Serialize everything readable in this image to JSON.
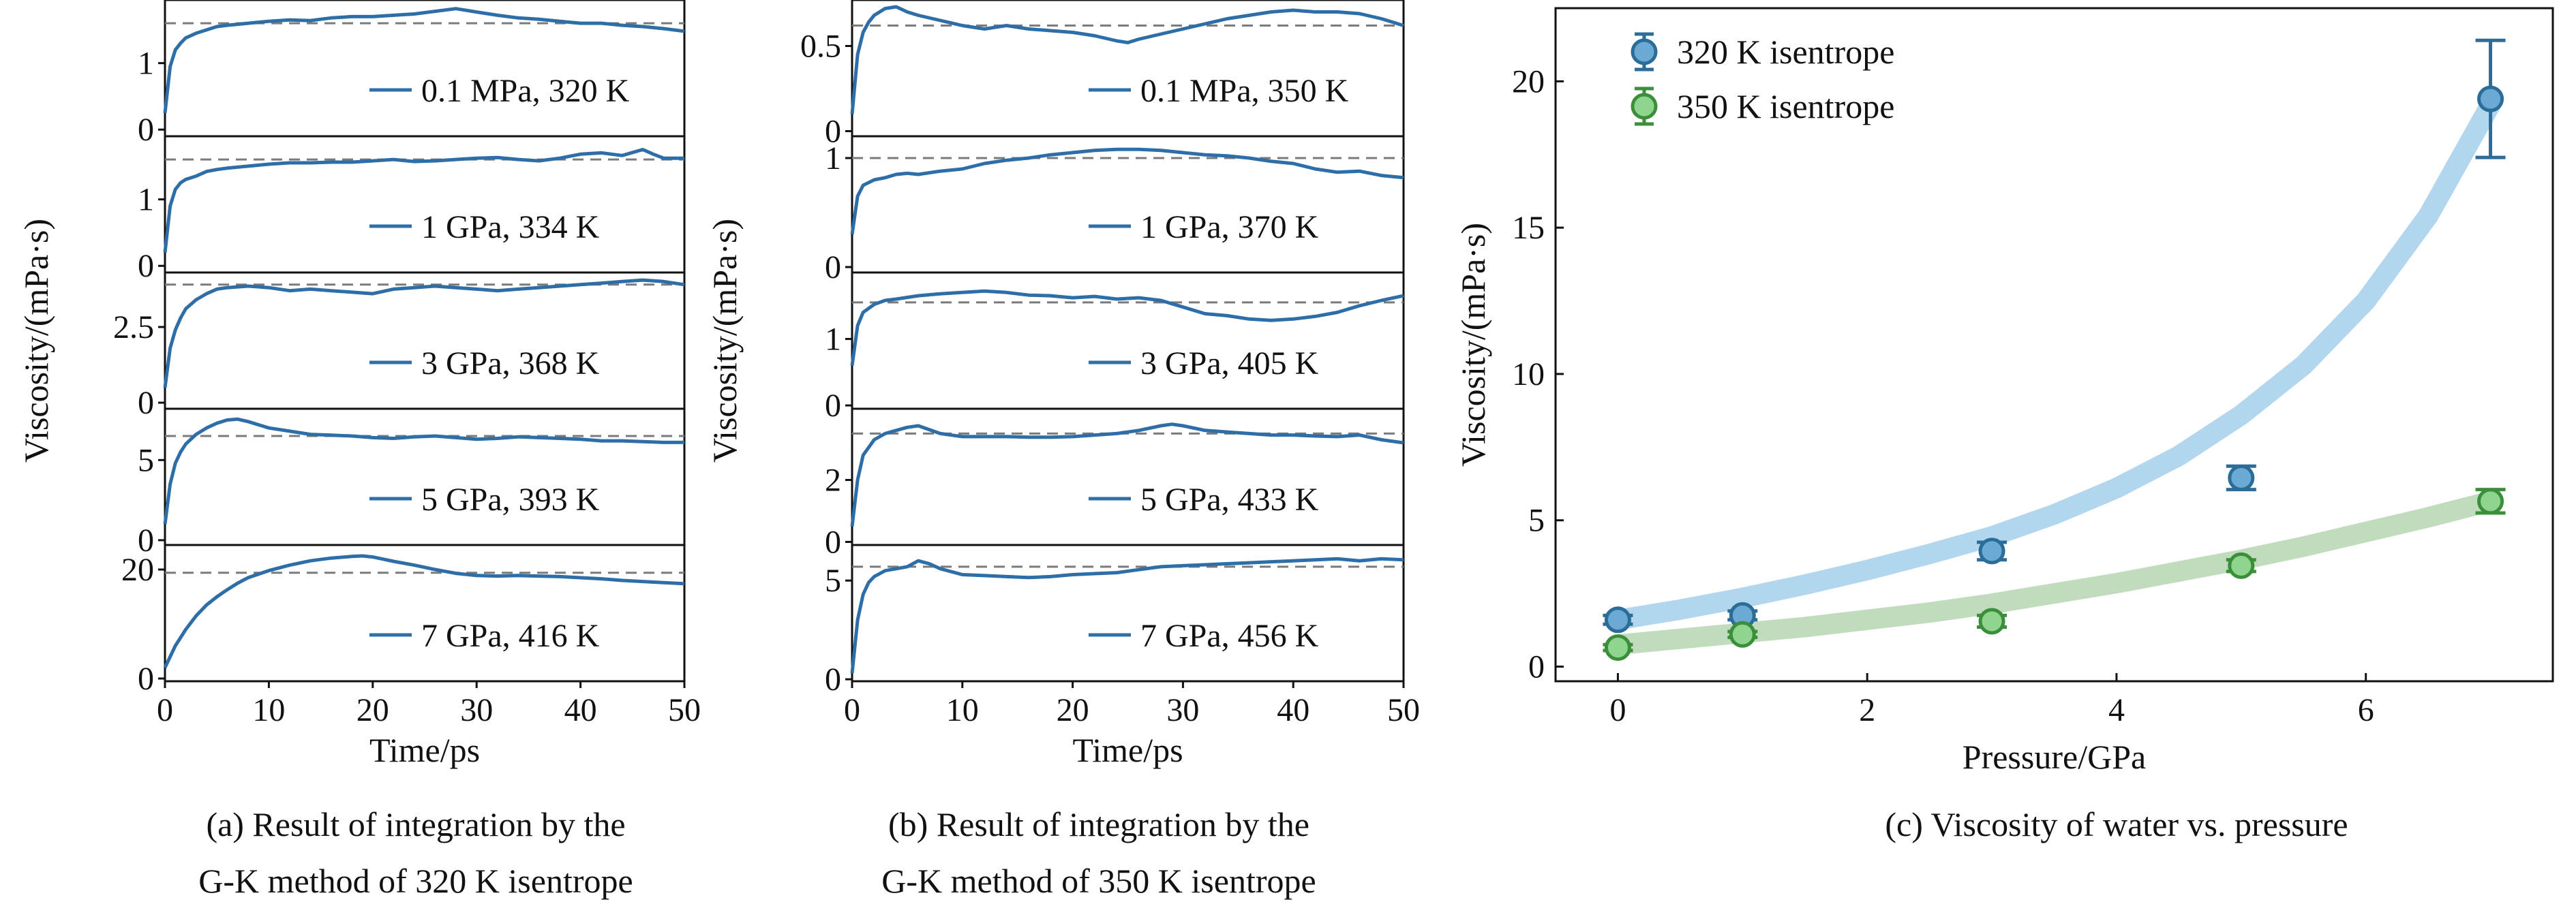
{
  "colors": {
    "series_320": "#6aaad3",
    "series_350": "#8fd48f",
    "fit_320": "#a8d2ec",
    "fit_350": "#b9d8b6",
    "trace": "#2e6ea8",
    "dashed": "#7a7a7a",
    "errorbar_320": "#2b6c98",
    "errorbar_350": "#3b8f3b"
  },
  "captions": {
    "a": [
      "(a) Result of integration by the",
      "G-K method of 320 K isentrope"
    ],
    "b": [
      "(b) Result of integration by the",
      "G-K method of 350 K isentrope"
    ],
    "c": [
      "(c) Viscosity of water vs. pressure"
    ]
  },
  "chart_data": [
    {
      "type": "line",
      "panel": "a",
      "xlabel": "Time/ps",
      "ylabel": "Viscosity/(mPa·s)",
      "x_ticks": [
        "0",
        "10",
        "20",
        "30",
        "40",
        "50"
      ],
      "xlim": [
        0,
        50
      ],
      "subplots": [
        {
          "label": "0.1 MPa, 320 K",
          "mean": 1.6,
          "ylim": [
            -0.1,
            1.95
          ],
          "yticks": [
            0,
            1
          ],
          "ytick_labels": [
            "0",
            "1"
          ],
          "x": [
            0,
            0.5,
            1,
            1.5,
            2,
            3,
            4,
            5,
            6,
            8,
            10,
            12,
            14,
            16,
            18,
            20,
            22,
            24,
            26,
            28,
            30,
            32,
            34,
            36,
            38,
            40,
            42,
            44,
            46,
            48,
            50
          ],
          "y": [
            0.25,
            0.95,
            1.2,
            1.3,
            1.38,
            1.45,
            1.5,
            1.55,
            1.57,
            1.6,
            1.63,
            1.65,
            1.64,
            1.68,
            1.7,
            1.7,
            1.72,
            1.74,
            1.78,
            1.82,
            1.77,
            1.72,
            1.68,
            1.66,
            1.63,
            1.6,
            1.6,
            1.57,
            1.55,
            1.52,
            1.48
          ]
        },
        {
          "label": "1 GPa, 334 K",
          "mean": 1.6,
          "ylim": [
            -0.1,
            1.95
          ],
          "yticks": [
            0,
            1
          ],
          "ytick_labels": [
            "0",
            "1"
          ],
          "x": [
            0,
            0.5,
            1,
            1.5,
            2,
            3,
            4,
            5,
            6,
            8,
            10,
            12,
            14,
            16,
            18,
            20,
            22,
            24,
            26,
            28,
            30,
            32,
            34,
            36,
            38,
            40,
            42,
            44,
            46,
            47,
            48,
            50
          ],
          "y": [
            0.2,
            0.9,
            1.15,
            1.25,
            1.3,
            1.35,
            1.42,
            1.45,
            1.47,
            1.5,
            1.53,
            1.55,
            1.55,
            1.56,
            1.56,
            1.58,
            1.6,
            1.57,
            1.58,
            1.6,
            1.62,
            1.63,
            1.6,
            1.58,
            1.62,
            1.68,
            1.7,
            1.66,
            1.75,
            1.68,
            1.62,
            1.62
          ]
        },
        {
          "label": "3 GPa, 368 K",
          "mean": 3.9,
          "ylim": [
            -0.2,
            4.3
          ],
          "yticks": [
            0,
            2.5
          ],
          "ytick_labels": [
            "0",
            "2.5"
          ],
          "x": [
            0,
            0.5,
            1,
            1.5,
            2,
            3,
            4,
            5,
            6,
            8,
            10,
            12,
            14,
            16,
            18,
            20,
            22,
            24,
            26,
            28,
            30,
            32,
            34,
            36,
            38,
            40,
            42,
            44,
            46,
            48,
            50
          ],
          "y": [
            0.5,
            1.8,
            2.4,
            2.8,
            3.1,
            3.4,
            3.6,
            3.75,
            3.8,
            3.85,
            3.8,
            3.7,
            3.75,
            3.7,
            3.65,
            3.6,
            3.75,
            3.8,
            3.85,
            3.8,
            3.75,
            3.7,
            3.75,
            3.8,
            3.85,
            3.9,
            3.95,
            4.0,
            4.05,
            4.0,
            3.9
          ]
        },
        {
          "label": "5 GPa, 393 K",
          "mean": 6.5,
          "ylim": [
            -0.3,
            8.2
          ],
          "yticks": [
            0,
            5
          ],
          "ytick_labels": [
            "0",
            "5"
          ],
          "x": [
            0,
            0.5,
            1,
            1.5,
            2,
            3,
            4,
            5,
            6,
            7,
            8,
            10,
            12,
            14,
            16,
            18,
            20,
            22,
            24,
            26,
            28,
            30,
            32,
            34,
            36,
            38,
            40,
            42,
            44,
            46,
            48,
            50
          ],
          "y": [
            1.0,
            3.5,
            4.8,
            5.5,
            6.0,
            6.6,
            7.0,
            7.3,
            7.5,
            7.55,
            7.4,
            7.0,
            6.8,
            6.6,
            6.55,
            6.5,
            6.4,
            6.35,
            6.45,
            6.5,
            6.4,
            6.3,
            6.35,
            6.45,
            6.4,
            6.35,
            6.3,
            6.2,
            6.2,
            6.15,
            6.1,
            6.1
          ]
        },
        {
          "label": "7 GPa, 416 K",
          "mean": 19.4,
          "ylim": [
            -0.5,
            24.5
          ],
          "yticks": [
            0,
            20
          ],
          "ytick_labels": [
            "0",
            "20"
          ],
          "x": [
            0,
            0.5,
            1,
            2,
            3,
            4,
            5,
            6,
            7,
            8,
            10,
            12,
            14,
            16,
            18,
            19,
            20,
            22,
            24,
            26,
            28,
            30,
            32,
            34,
            36,
            38,
            40,
            42,
            44,
            46,
            48,
            50
          ],
          "y": [
            2.0,
            4.0,
            6.0,
            9.0,
            11.5,
            13.5,
            15.0,
            16.3,
            17.5,
            18.5,
            19.8,
            20.8,
            21.6,
            22.1,
            22.4,
            22.5,
            22.3,
            21.5,
            20.8,
            20.0,
            19.3,
            18.9,
            18.8,
            18.9,
            18.8,
            18.7,
            18.5,
            18.3,
            18.0,
            17.8,
            17.6,
            17.4
          ]
        }
      ]
    },
    {
      "type": "line",
      "panel": "b",
      "xlabel": "Time/ps",
      "ylabel": "Viscosity/(mPa·s)",
      "x_ticks": [
        "0",
        "10",
        "20",
        "30",
        "40",
        "50"
      ],
      "xlim": [
        0,
        50
      ],
      "subplots": [
        {
          "label": "0.1 MPa, 350 K",
          "mean": 0.62,
          "ylim": [
            -0.03,
            0.77
          ],
          "yticks": [
            0,
            0.5
          ],
          "ytick_labels": [
            "0",
            "0.5"
          ],
          "x": [
            0,
            0.5,
            1,
            1.5,
            2,
            3,
            4,
            5,
            6,
            8,
            10,
            12,
            14,
            16,
            18,
            20,
            22,
            24,
            25,
            26,
            28,
            30,
            32,
            34,
            36,
            38,
            40,
            42,
            44,
            46,
            48,
            50
          ],
          "y": [
            0.1,
            0.45,
            0.58,
            0.64,
            0.68,
            0.72,
            0.73,
            0.7,
            0.68,
            0.65,
            0.62,
            0.6,
            0.62,
            0.6,
            0.59,
            0.58,
            0.56,
            0.53,
            0.52,
            0.54,
            0.57,
            0.6,
            0.63,
            0.66,
            0.68,
            0.7,
            0.71,
            0.7,
            0.7,
            0.69,
            0.66,
            0.62
          ]
        },
        {
          "label": "1 GPa, 370 K",
          "mean": 1.0,
          "ylim": [
            -0.05,
            1.2
          ],
          "yticks": [
            0,
            1
          ],
          "ytick_labels": [
            "0",
            "1"
          ],
          "x": [
            0,
            0.5,
            1,
            2,
            3,
            4,
            5,
            6,
            8,
            10,
            12,
            14,
            16,
            18,
            20,
            22,
            24,
            26,
            28,
            30,
            32,
            34,
            36,
            38,
            40,
            42,
            44,
            46,
            48,
            50
          ],
          "y": [
            0.3,
            0.65,
            0.75,
            0.8,
            0.82,
            0.85,
            0.86,
            0.85,
            0.88,
            0.9,
            0.95,
            0.98,
            1.0,
            1.03,
            1.05,
            1.07,
            1.08,
            1.08,
            1.07,
            1.05,
            1.03,
            1.02,
            1.0,
            0.97,
            0.95,
            0.9,
            0.87,
            0.88,
            0.84,
            0.82
          ]
        },
        {
          "label": "3 GPa, 405 K",
          "mean": 1.55,
          "ylim": [
            -0.05,
            2.0
          ],
          "yticks": [
            0,
            1
          ],
          "ytick_labels": [
            "0",
            "1"
          ],
          "x": [
            0,
            0.5,
            1,
            2,
            3,
            4,
            6,
            8,
            10,
            12,
            14,
            16,
            18,
            20,
            22,
            24,
            26,
            28,
            30,
            32,
            34,
            36,
            38,
            40,
            42,
            44,
            46,
            48,
            50
          ],
          "y": [
            0.6,
            1.2,
            1.4,
            1.52,
            1.58,
            1.6,
            1.65,
            1.68,
            1.7,
            1.72,
            1.7,
            1.66,
            1.65,
            1.62,
            1.64,
            1.6,
            1.62,
            1.58,
            1.48,
            1.38,
            1.35,
            1.3,
            1.28,
            1.3,
            1.34,
            1.4,
            1.5,
            1.58,
            1.65
          ]
        },
        {
          "label": "5 GPa, 433 K",
          "mean": 3.5,
          "ylim": [
            -0.1,
            4.3
          ],
          "yticks": [
            0,
            2
          ],
          "ytick_labels": [
            "0",
            "2"
          ],
          "x": [
            0,
            0.5,
            1,
            2,
            3,
            4,
            5,
            6,
            8,
            10,
            12,
            14,
            16,
            18,
            20,
            22,
            24,
            26,
            28,
            29,
            30,
            32,
            34,
            36,
            38,
            40,
            42,
            44,
            46,
            48,
            50
          ],
          "y": [
            0.5,
            2.0,
            2.8,
            3.3,
            3.5,
            3.6,
            3.7,
            3.75,
            3.5,
            3.4,
            3.4,
            3.4,
            3.38,
            3.38,
            3.4,
            3.45,
            3.5,
            3.6,
            3.75,
            3.8,
            3.75,
            3.6,
            3.55,
            3.5,
            3.45,
            3.45,
            3.42,
            3.4,
            3.45,
            3.3,
            3.2
          ]
        },
        {
          "label": "7 GPa, 456 K",
          "mean": 5.7,
          "ylim": [
            -0.1,
            6.8
          ],
          "yticks": [
            0,
            5
          ],
          "ytick_labels": [
            "0",
            "5"
          ],
          "x": [
            0,
            0.5,
            1,
            1.5,
            2,
            3,
            4,
            5,
            6,
            7,
            8,
            10,
            12,
            14,
            16,
            18,
            20,
            22,
            24,
            26,
            28,
            30,
            32,
            34,
            36,
            38,
            40,
            42,
            44,
            46,
            48,
            50
          ],
          "y": [
            0.3,
            3.0,
            4.3,
            4.9,
            5.2,
            5.5,
            5.6,
            5.7,
            6.0,
            5.85,
            5.6,
            5.3,
            5.25,
            5.2,
            5.15,
            5.2,
            5.3,
            5.35,
            5.4,
            5.55,
            5.7,
            5.75,
            5.8,
            5.85,
            5.9,
            5.95,
            6.0,
            6.05,
            6.1,
            6.0,
            6.1,
            6.05
          ]
        }
      ]
    },
    {
      "type": "scatter",
      "panel": "c",
      "xlabel": "Pressure/GPa",
      "ylabel": "Viscosity/(mPa·s)",
      "xlim": [
        -0.5,
        7.5
      ],
      "ylim": [
        -0.5,
        22.5
      ],
      "x_ticks": [
        0,
        2,
        4,
        6
      ],
      "y_ticks": [
        0,
        5,
        10,
        15,
        20
      ],
      "legend_position": "top-left",
      "series": [
        {
          "name": "320 K isentrope",
          "x": [
            0,
            1,
            3,
            5,
            7
          ],
          "y": [
            1.6,
            1.75,
            3.95,
            6.45,
            19.4
          ],
          "err": [
            0.15,
            0.15,
            0.3,
            0.4,
            2.0
          ],
          "fit_x": [
            0,
            0.5,
            1,
            1.5,
            2,
            2.5,
            3,
            3.5,
            4,
            4.5,
            5,
            5.5,
            6,
            6.5,
            7
          ],
          "fit_y": [
            1.6,
            1.95,
            2.35,
            2.8,
            3.3,
            3.85,
            4.45,
            5.2,
            6.1,
            7.2,
            8.6,
            10.3,
            12.5,
            15.4,
            19.2
          ]
        },
        {
          "name": "350 K isentrope",
          "x": [
            0,
            1,
            3,
            5,
            7
          ],
          "y": [
            0.65,
            1.1,
            1.55,
            3.45,
            5.65
          ],
          "err": [
            0.1,
            0.1,
            0.2,
            0.2,
            0.4
          ],
          "fit_x": [
            0,
            0.5,
            1,
            1.5,
            2,
            2.5,
            3,
            3.5,
            4,
            4.5,
            5,
            5.5,
            6,
            6.5,
            7
          ],
          "fit_y": [
            0.75,
            0.95,
            1.15,
            1.35,
            1.6,
            1.85,
            2.15,
            2.5,
            2.85,
            3.25,
            3.65,
            4.1,
            4.6,
            5.1,
            5.65
          ]
        }
      ]
    }
  ]
}
